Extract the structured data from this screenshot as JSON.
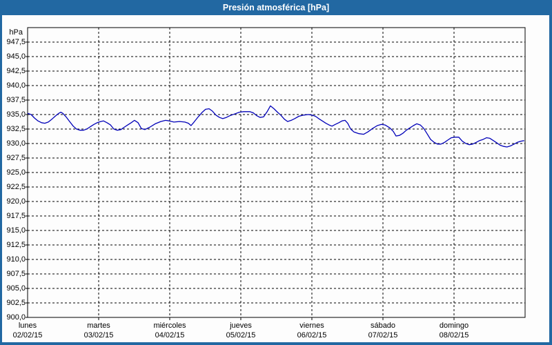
{
  "window": {
    "title": "Presión atmosférica [hPa]"
  },
  "colors": {
    "titlebar_bg": "#2268A2",
    "frame_border": "#2268A2",
    "plot_bg": "#fdfdfd",
    "grid_color": "#000000",
    "line_color": "#0000B8"
  },
  "chart_data": {
    "type": "line",
    "title": "Presión atmosférica [hPa]",
    "unit_label": "hPa",
    "ylabel": "hPa",
    "xlabel": "",
    "ylim": [
      900,
      950
    ],
    "ytick_step": 2.5,
    "grid": true,
    "legend": "none",
    "ytick_labels": [
      "947,5",
      "945,0",
      "942,5",
      "940,0",
      "937,5",
      "935,0",
      "932,5",
      "930,0",
      "927,5",
      "925,0",
      "922,5",
      "920,0",
      "917,5",
      "915,0",
      "912,5",
      "910,0",
      "907,5",
      "905,0",
      "902,5",
      "900,0"
    ],
    "x_days": [
      {
        "name": "lunes",
        "date": "02/02/15"
      },
      {
        "name": "martes",
        "date": "03/02/15"
      },
      {
        "name": "miércoles",
        "date": "04/02/15"
      },
      {
        "name": "jueves",
        "date": "05/02/15"
      },
      {
        "name": "viernes",
        "date": "06/02/15"
      },
      {
        "name": "sábado",
        "date": "07/02/15"
      },
      {
        "name": "domingo",
        "date": "08/02/15"
      }
    ],
    "x_range_hours": 168,
    "series": [
      {
        "name": "Presión atmosférica",
        "unit": "hPa",
        "points": [
          [
            0,
            935.2
          ],
          [
            1.2,
            935.0
          ],
          [
            2.3,
            934.4
          ],
          [
            3.5,
            933.9
          ],
          [
            4.7,
            933.6
          ],
          [
            5.8,
            933.5
          ],
          [
            7,
            933.7
          ],
          [
            8.2,
            934.2
          ],
          [
            9.3,
            934.7
          ],
          [
            10.5,
            935.2
          ],
          [
            11.2,
            935.4
          ],
          [
            11.9,
            935.2
          ],
          [
            13,
            934.6
          ],
          [
            14.2,
            933.8
          ],
          [
            15.4,
            933.0
          ],
          [
            16.5,
            932.5
          ],
          [
            17.7,
            932.3
          ],
          [
            18.9,
            932.3
          ],
          [
            20,
            932.5
          ],
          [
            21.2,
            932.9
          ],
          [
            22.4,
            933.3
          ],
          [
            23.5,
            933.6
          ],
          [
            24.7,
            933.8
          ],
          [
            25.6,
            933.9
          ],
          [
            26.8,
            933.6
          ],
          [
            28,
            933.2
          ],
          [
            29.1,
            932.5
          ],
          [
            30.3,
            932.3
          ],
          [
            31.5,
            932.4
          ],
          [
            32.6,
            932.8
          ],
          [
            33.8,
            933.2
          ],
          [
            35,
            933.6
          ],
          [
            36.1,
            934.0
          ],
          [
            37.3,
            933.6
          ],
          [
            38.4,
            932.6
          ],
          [
            39.6,
            932.4
          ],
          [
            41.2,
            932.8
          ],
          [
            43.1,
            933.4
          ],
          [
            45,
            933.8
          ],
          [
            46.6,
            934.0
          ],
          [
            47.8,
            933.9
          ],
          [
            49.4,
            933.7
          ],
          [
            51.3,
            933.8
          ],
          [
            53.1,
            933.7
          ],
          [
            54.3,
            933.5
          ],
          [
            55.2,
            933.1
          ],
          [
            56.2,
            933.7
          ],
          [
            57.6,
            934.6
          ],
          [
            59,
            935.4
          ],
          [
            60.1,
            935.9
          ],
          [
            61.3,
            936.0
          ],
          [
            62.4,
            935.6
          ],
          [
            63.6,
            934.9
          ],
          [
            64.8,
            934.5
          ],
          [
            65.9,
            934.3
          ],
          [
            67.1,
            934.5
          ],
          [
            68.3,
            934.8
          ],
          [
            69.9,
            935.1
          ],
          [
            71.5,
            935.4
          ],
          [
            72.9,
            935.5
          ],
          [
            75,
            935.5
          ],
          [
            76.2,
            935.3
          ],
          [
            77.4,
            934.8
          ],
          [
            78.5,
            934.5
          ],
          [
            79.7,
            934.6
          ],
          [
            80.9,
            935.5
          ],
          [
            82,
            936.5
          ],
          [
            83.2,
            936.0
          ],
          [
            84.4,
            935.4
          ],
          [
            85.5,
            934.9
          ],
          [
            86.7,
            934.2
          ],
          [
            87.8,
            933.8
          ],
          [
            89,
            934.0
          ],
          [
            90.2,
            934.3
          ],
          [
            91.6,
            934.7
          ],
          [
            93.2,
            934.9
          ],
          [
            94.8,
            935.0
          ],
          [
            96,
            934.9
          ],
          [
            97.2,
            934.7
          ],
          [
            98.3,
            934.3
          ],
          [
            99.5,
            933.9
          ],
          [
            100.7,
            933.5
          ],
          [
            101.8,
            933.2
          ],
          [
            102.8,
            933.0
          ],
          [
            103.9,
            933.3
          ],
          [
            105.1,
            933.6
          ],
          [
            106.2,
            933.9
          ],
          [
            107.2,
            934.0
          ],
          [
            108.1,
            933.5
          ],
          [
            109.1,
            932.5
          ],
          [
            110.2,
            932.0
          ],
          [
            111.9,
            931.7
          ],
          [
            113.5,
            931.6
          ],
          [
            114.9,
            932.0
          ],
          [
            116.5,
            932.6
          ],
          [
            118.1,
            933.1
          ],
          [
            119.5,
            933.3
          ],
          [
            120.7,
            933.2
          ],
          [
            122.3,
            932.7
          ],
          [
            123.5,
            932.1
          ],
          [
            124.4,
            931.3
          ],
          [
            125.6,
            931.4
          ],
          [
            126.8,
            931.8
          ],
          [
            127.9,
            932.3
          ],
          [
            129.1,
            932.7
          ],
          [
            130.3,
            933.1
          ],
          [
            131.4,
            933.4
          ],
          [
            132.6,
            933.2
          ],
          [
            133.8,
            932.6
          ],
          [
            134.9,
            931.7
          ],
          [
            136.1,
            930.7
          ],
          [
            137.3,
            930.2
          ],
          [
            138.4,
            929.9
          ],
          [
            139.6,
            929.9
          ],
          [
            140.8,
            930.2
          ],
          [
            141.9,
            930.6
          ],
          [
            143.1,
            931.0
          ],
          [
            144.2,
            931.1
          ],
          [
            145.6,
            931.1
          ],
          [
            146.8,
            930.4
          ],
          [
            148,
            930.0
          ],
          [
            149.1,
            929.8
          ],
          [
            150.3,
            929.9
          ],
          [
            151.5,
            930.2
          ],
          [
            152.6,
            930.5
          ],
          [
            153.8,
            930.7
          ],
          [
            155,
            931.0
          ],
          [
            156.1,
            930.9
          ],
          [
            157.3,
            930.5
          ],
          [
            158.5,
            930.1
          ],
          [
            159.6,
            929.7
          ],
          [
            160.8,
            929.5
          ],
          [
            161.9,
            929.4
          ],
          [
            163.1,
            929.6
          ],
          [
            164.3,
            929.9
          ],
          [
            165.4,
            930.2
          ],
          [
            166.6,
            930.4
          ],
          [
            167.7,
            930.5
          ]
        ]
      }
    ]
  }
}
